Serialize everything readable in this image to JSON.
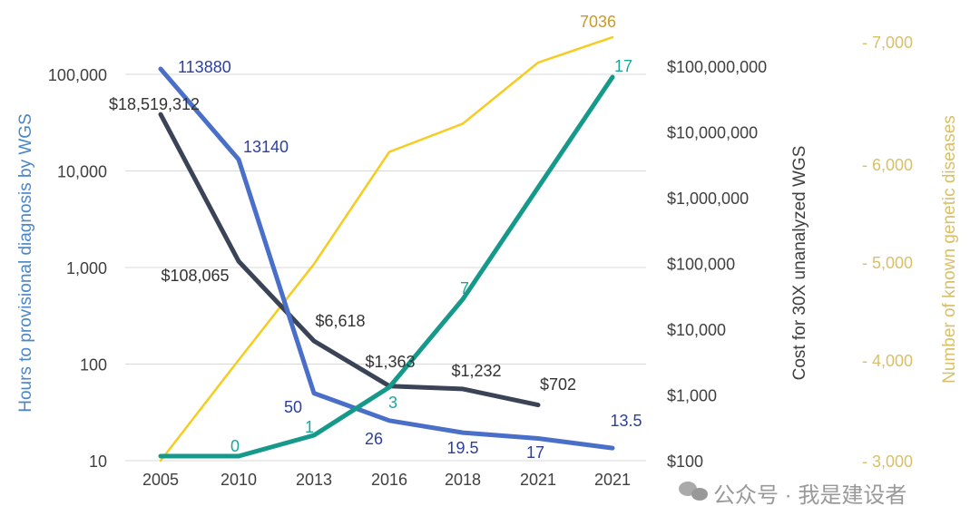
{
  "chart_data": {
    "type": "line",
    "categories": [
      "2005",
      "2010",
      "2013",
      "2016",
      "2018",
      "2021",
      "2021"
    ],
    "grid": true,
    "legend": "none",
    "axes": {
      "left": {
        "label": "Hours to provisional diagnosis by  WGS",
        "scale": "log",
        "range": [
          10,
          100000
        ],
        "ticks": [
          "10",
          "100",
          "1,000",
          "10,000",
          "100,000"
        ],
        "color": "#4a86c8"
      },
      "right_inner": {
        "label": "Cost for 30X unanalyzed WGS",
        "scale": "log",
        "range": [
          100,
          100000000
        ],
        "ticks": [
          "$100",
          "$1,000",
          "$10,000",
          "$100,000",
          "$1,000,000",
          "$10,000,000",
          "$100,000,000"
        ],
        "color": "#404040"
      },
      "right_outer": {
        "label": "Number of known genetic diseases",
        "scale": "linear",
        "range": [
          3000,
          7000
        ],
        "ticks": [
          "- 3,000",
          "- 4,000",
          "- 5,000",
          "- 6,000",
          "- 7,000"
        ],
        "color": "#d8c06a"
      }
    },
    "series": [
      {
        "axis": "left",
        "color": "#4a6fc8",
        "label_color": "#2c3f9c",
        "values": [
          113880,
          13140,
          50,
          26,
          19.5,
          17,
          13.5
        ],
        "labels": [
          "113880",
          "13140",
          "50",
          "26",
          "19.5",
          "17",
          "13.5"
        ]
      },
      {
        "axis": "right_inner",
        "color": "#3a4456",
        "label_color": "#333333",
        "values": [
          18519312,
          108065,
          6618,
          1363,
          1232,
          702,
          null
        ],
        "labels": [
          "$18,519,312",
          "$108,065",
          "$6,618",
          "$1,363",
          "$1,232",
          "$702",
          ""
        ]
      },
      {
        "axis": "none",
        "color": "#15998a",
        "label_color": "#1ba89c",
        "values": [
          0,
          0,
          1,
          3,
          7,
          null,
          17
        ],
        "labels": [
          "",
          "0",
          "1",
          "3",
          "7",
          "",
          "17"
        ]
      },
      {
        "axis": "right_outer",
        "color": "#f5cc1f",
        "label_color": "#c99a2a",
        "values": [
          3000,
          4000,
          4980,
          6100,
          6330,
          6830,
          7036
        ],
        "labels": [
          "",
          "",
          "",
          "",
          "",
          "",
          "7036"
        ]
      }
    ]
  },
  "watermark": {
    "text": "公众号 · 我是建设者",
    "icon": "wechat-icon"
  }
}
